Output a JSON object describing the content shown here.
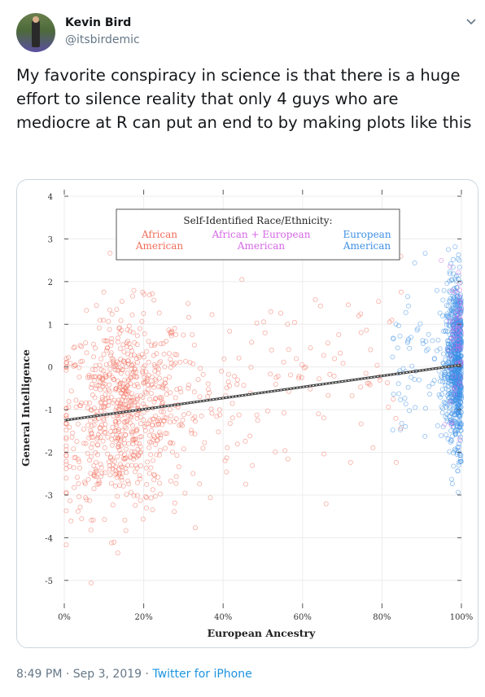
{
  "author": {
    "name": "Kevin Bird",
    "handle": "@itsbirdemic"
  },
  "tweet": {
    "text": "My favorite conspiracy in science is that there is a huge effort to silence reality that only 4 guys who are mediocre at R can put an end to by making plots like this",
    "time": "8:49 PM · Sep 3, 2019",
    "separator": " · ",
    "source": "Twitter for iPhone"
  },
  "icons": {
    "more": "chevron-down-icon",
    "avatar": "avatar-photo"
  },
  "colors": {
    "african_american": "#f26d5b",
    "mixed": "#d667e6",
    "european_american": "#3d8fe6",
    "link": "#1b95e0"
  },
  "chart_data": {
    "type": "scatter",
    "title": "",
    "xlabel": "European Ancestry",
    "ylabel": "General Intelligence",
    "xlim": [
      0,
      100
    ],
    "ylim": [
      -5.5,
      4
    ],
    "xticks": [
      "0%",
      "20%",
      "40%",
      "60%",
      "80%",
      "100%"
    ],
    "yticks": [
      "4",
      "3",
      "2",
      "1",
      "0",
      "-1",
      "-2",
      "-3",
      "-4",
      "-5"
    ],
    "grid": true,
    "legend": {
      "title": "Self-Identified Race/Ethnicity:",
      "placement": "top-center",
      "entries": [
        {
          "line1": "African",
          "line2": "American"
        },
        {
          "line1": "African + European",
          "line2": "American"
        },
        {
          "line1": "European",
          "line2": "American"
        }
      ]
    },
    "regression": {
      "x": [
        0,
        100
      ],
      "y": [
        -1.25,
        0.05
      ]
    },
    "series": [
      {
        "name": "African American",
        "x_range": [
          0,
          100
        ],
        "cluster_center": [
          15,
          -1.0
        ],
        "approx_points": 900
      },
      {
        "name": "African + European American",
        "cluster_center": [
          98,
          0.5
        ],
        "approx_points": 60
      },
      {
        "name": "European American",
        "cluster_center": [
          99,
          0.0
        ],
        "approx_points": 900
      }
    ]
  }
}
